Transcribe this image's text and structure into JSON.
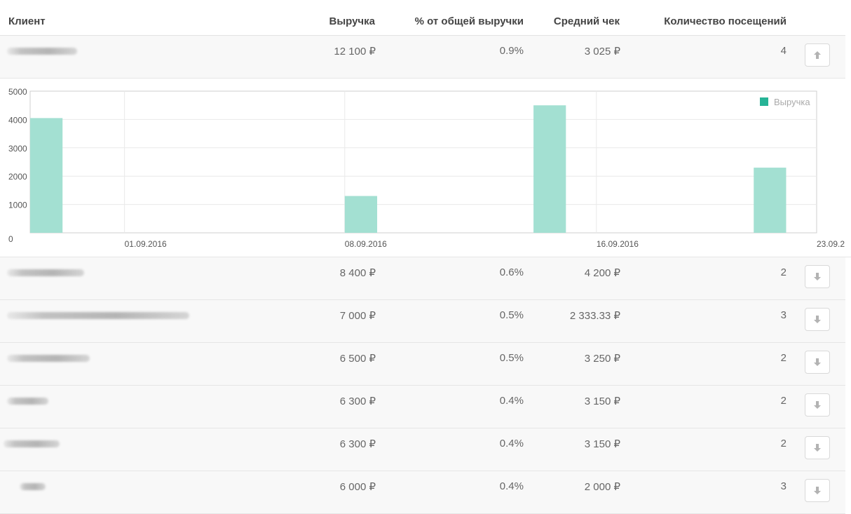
{
  "table": {
    "columns": {
      "client": "Клиент",
      "revenue": "Выручка",
      "share": "% от общей выручки",
      "avg_check": "Средний чек",
      "visits": "Количество посещений"
    },
    "rows": [
      {
        "revenue": "12 100 ₽",
        "share": "0.9%",
        "avg_check": "3 025 ₽",
        "visits": "4",
        "toggle_icon": "arrow-up-icon"
      },
      {
        "revenue": "8 400 ₽",
        "share": "0.6%",
        "avg_check": "4 200 ₽",
        "visits": "2",
        "toggle_icon": "arrow-down-icon"
      },
      {
        "revenue": "7 000 ₽",
        "share": "0.5%",
        "avg_check": "2 333.33 ₽",
        "visits": "3",
        "toggle_icon": "arrow-down-icon"
      },
      {
        "revenue": "6 500 ₽",
        "share": "0.5%",
        "avg_check": "3 250 ₽",
        "visits": "2",
        "toggle_icon": "arrow-down-icon"
      },
      {
        "revenue": "6 300 ₽",
        "share": "0.4%",
        "avg_check": "3 150 ₽",
        "visits": "2",
        "toggle_icon": "arrow-down-icon"
      },
      {
        "revenue": "6 300 ₽",
        "share": "0.4%",
        "avg_check": "3 150 ₽",
        "visits": "2",
        "toggle_icon": "arrow-down-icon"
      },
      {
        "revenue": "6 000 ₽",
        "share": "0.4%",
        "avg_check": "2 000 ₽",
        "visits": "3",
        "toggle_icon": "arrow-down-icon"
      }
    ]
  },
  "colors": {
    "bar": "#a3e0d2",
    "legend_swatch": "#26b396",
    "grid": "#e9e9e9",
    "border": "#cfcfcf"
  },
  "chart_data": {
    "type": "bar",
    "series": [
      {
        "name": "Выручка",
        "points": [
          {
            "x": "2016-08-29",
            "y": 4050
          },
          {
            "x": "2016-09-08",
            "y": 1300
          },
          {
            "x": "2016-09-14",
            "y": 4500
          },
          {
            "x": "2016-09-21",
            "y": 2300
          }
        ]
      }
    ],
    "x_tick_labels": [
      {
        "date": "2016-09-01",
        "label": "01.09.2016"
      },
      {
        "date": "2016-09-08",
        "label": "08.09.2016"
      },
      {
        "date": "2016-09-16",
        "label": "16.09.2016"
      },
      {
        "date": "2016-09-23",
        "label": "23.09.2"
      }
    ],
    "xlim": [
      "2016-08-29",
      "2016-09-23"
    ],
    "ylim": [
      0,
      5000
    ],
    "y_ticks": [
      0,
      1000,
      2000,
      3000,
      4000,
      5000
    ],
    "grid": true,
    "legend_position": "top-right"
  }
}
